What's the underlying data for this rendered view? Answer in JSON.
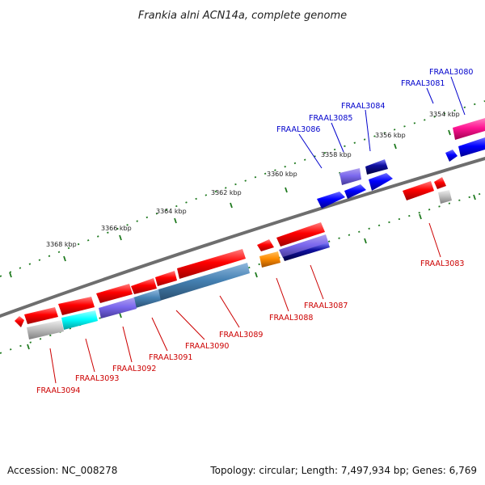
{
  "title": "Frankia alni ACN14a, complete genome",
  "footer": {
    "accession": "Accession: NC_008278",
    "summary": "Topology: circular; Length: 7,497,934 bp; Genes: 6,769"
  },
  "colors": {
    "backbone": "#808080",
    "ticks": "#1f7a1f",
    "forward_label": "#0000cc",
    "reverse_label": "#cc0000"
  },
  "scale_labels": [
    "3354 kbp",
    "3356 kbp",
    "3358 kbp",
    "3360 kbp",
    "3362 kbp",
    "3364 kbp",
    "3366 kbp",
    "3368 kbp"
  ],
  "gene_labels_forward": [
    "FRAAL3080",
    "FRAAL3081",
    "FRAAL3084",
    "FRAAL3085",
    "FRAAL3086"
  ],
  "gene_labels_reverse": [
    "FRAAL3083",
    "FRAAL3087",
    "FRAAL3088",
    "FRAAL3089",
    "FRAAL3090",
    "FRAAL3091",
    "FRAAL3092",
    "FRAAL3093",
    "FRAAL3094"
  ]
}
